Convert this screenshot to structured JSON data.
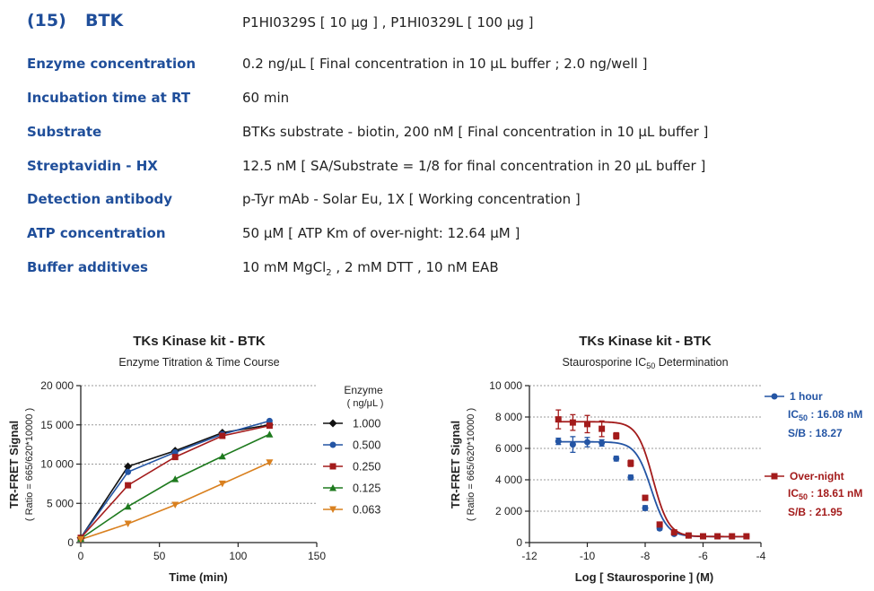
{
  "header": {
    "number": "(15)",
    "name": "BTK",
    "products": "P1HI0329S [ 10 μg ] , P1HI0329L [ 100 μg ]"
  },
  "rows": [
    {
      "label": "Enzyme concentration",
      "value": "0.2 ng/μL    [ Final concentration in 10 μL buffer ; 2.0 ng/well ]"
    },
    {
      "label": "Incubation time at RT",
      "value": "60 min"
    },
    {
      "label": "Substrate",
      "value": "BTKs substrate - biotin, 200 nM    [ Final concentration in 10 μL buffer ]"
    },
    {
      "label": "Streptavidin - HX",
      "value": "12.5 nM    [ SA/Substrate = 1/8 for final concentration in 20 μL buffer ]"
    },
    {
      "label": "Detection antibody",
      "value": "p-Tyr mAb - Solar Eu, 1X    [ Working concentration ]"
    },
    {
      "label": "ATP concentration",
      "value": "50 μM    [ ATP Km of over-night: 12.64 μM ]"
    },
    {
      "label": "Buffer additives",
      "value_pre": "10 mM MgCl",
      "value_sub": "2",
      "value_post": " , 2 mM DTT , 10 nM EAB"
    }
  ],
  "chart_data": [
    {
      "type": "line",
      "title": "TKs Kinase kit  -  BTK",
      "subtitle": "Enzyme Titration & Time Course",
      "xlabel": "Time  (min)",
      "ylabel": "TR-FRET Signal",
      "ylabel2": "( Ratio = 665/620*10000 )",
      "xlim": [
        0,
        150
      ],
      "ylim": [
        0,
        20000
      ],
      "xticks": [
        0,
        50,
        100,
        150
      ],
      "yticks": [
        0,
        5000,
        10000,
        15000,
        20000
      ],
      "xtick_labels": [
        "0",
        "50",
        "100",
        "150"
      ],
      "ytick_labels": [
        "0",
        "5 000",
        "10 000",
        "15 000",
        "20 000"
      ],
      "legend_title": "Enzyme",
      "legend_subtitle": "( ng/μL )",
      "legend_position": "right",
      "x": [
        0,
        30,
        60,
        90,
        120
      ],
      "series": [
        {
          "name": "1.000",
          "color": "#111111",
          "marker": "diamond",
          "values": [
            600,
            9700,
            11700,
            14000,
            15000
          ]
        },
        {
          "name": "0.500",
          "color": "#2455a4",
          "marker": "circle",
          "values": [
            600,
            9000,
            11500,
            13800,
            15500
          ]
        },
        {
          "name": "0.250",
          "color": "#a31b1b",
          "marker": "square",
          "values": [
            600,
            7300,
            10900,
            13600,
            14900
          ]
        },
        {
          "name": "0.125",
          "color": "#1e7a1e",
          "marker": "triangle",
          "values": [
            500,
            4600,
            8100,
            11000,
            13800
          ]
        },
        {
          "name": "0.063",
          "color": "#d9801f",
          "marker": "triangle-down",
          "values": [
            400,
            2400,
            4800,
            7500,
            10200
          ]
        }
      ]
    },
    {
      "type": "scatter",
      "title": "TKs Kinase kit  -  BTK",
      "subtitle": "Staurosporine IC50 Determination",
      "subtitle_pre": "Staurosporine IC",
      "subtitle_sub": "50",
      "subtitle_post": " Determination",
      "xlabel": "Log [ Staurosporine ]  (M)",
      "ylabel": "TR-FRET Signal",
      "ylabel2": "( Ratio = 665/620*10000 )",
      "xlim": [
        -12,
        -4
      ],
      "ylim": [
        0,
        10000
      ],
      "xticks": [
        -12,
        -10,
        -8,
        -6,
        -4
      ],
      "yticks": [
        0,
        2000,
        4000,
        6000,
        8000,
        10000
      ],
      "xtick_labels": [
        "-12",
        "-10",
        "-8",
        "-6",
        "-4"
      ],
      "ytick_labels": [
        "0",
        "2 000",
        "4 000",
        "6 000",
        "8 000",
        "10 000"
      ],
      "x": [
        -11,
        -10.5,
        -10,
        -9.5,
        -9,
        -8.5,
        -8,
        -7.5,
        -7,
        -6.5,
        -6,
        -5.5,
        -5,
        -4.5
      ],
      "series": [
        {
          "name": "1 hour",
          "color": "#2455a4",
          "marker": "circle",
          "values": [
            6450,
            6250,
            6400,
            6350,
            5350,
            4150,
            2200,
            900,
            550,
            450,
            400,
            400,
            400,
            400
          ],
          "errors": [
            200,
            500,
            300,
            200,
            150,
            150,
            150,
            100,
            80,
            60,
            50,
            50,
            50,
            50
          ],
          "ic50_label": "IC",
          "ic50_sub": "50",
          "ic50_value": " : 16.08 nM",
          "ic50_log": -7.79,
          "sb": "S/B : 18.27",
          "fit": {
            "top": 6420,
            "bottom": 380,
            "hill": 1.6
          }
        },
        {
          "name": "Over-night",
          "color": "#a31b1b",
          "marker": "square",
          "values": [
            7850,
            7650,
            7550,
            7250,
            6800,
            5050,
            2850,
            1150,
            650,
            450,
            400,
            400,
            400,
            400
          ],
          "errors": [
            600,
            500,
            550,
            500,
            200,
            200,
            150,
            100,
            80,
            60,
            50,
            50,
            50,
            50
          ],
          "ic50_label": "IC",
          "ic50_sub": "50",
          "ic50_value": " : 18.61 nM",
          "ic50_log": -7.73,
          "sb": "S/B : 21.95",
          "fit": {
            "top": 7700,
            "bottom": 380,
            "hill": 1.6
          }
        }
      ]
    }
  ]
}
